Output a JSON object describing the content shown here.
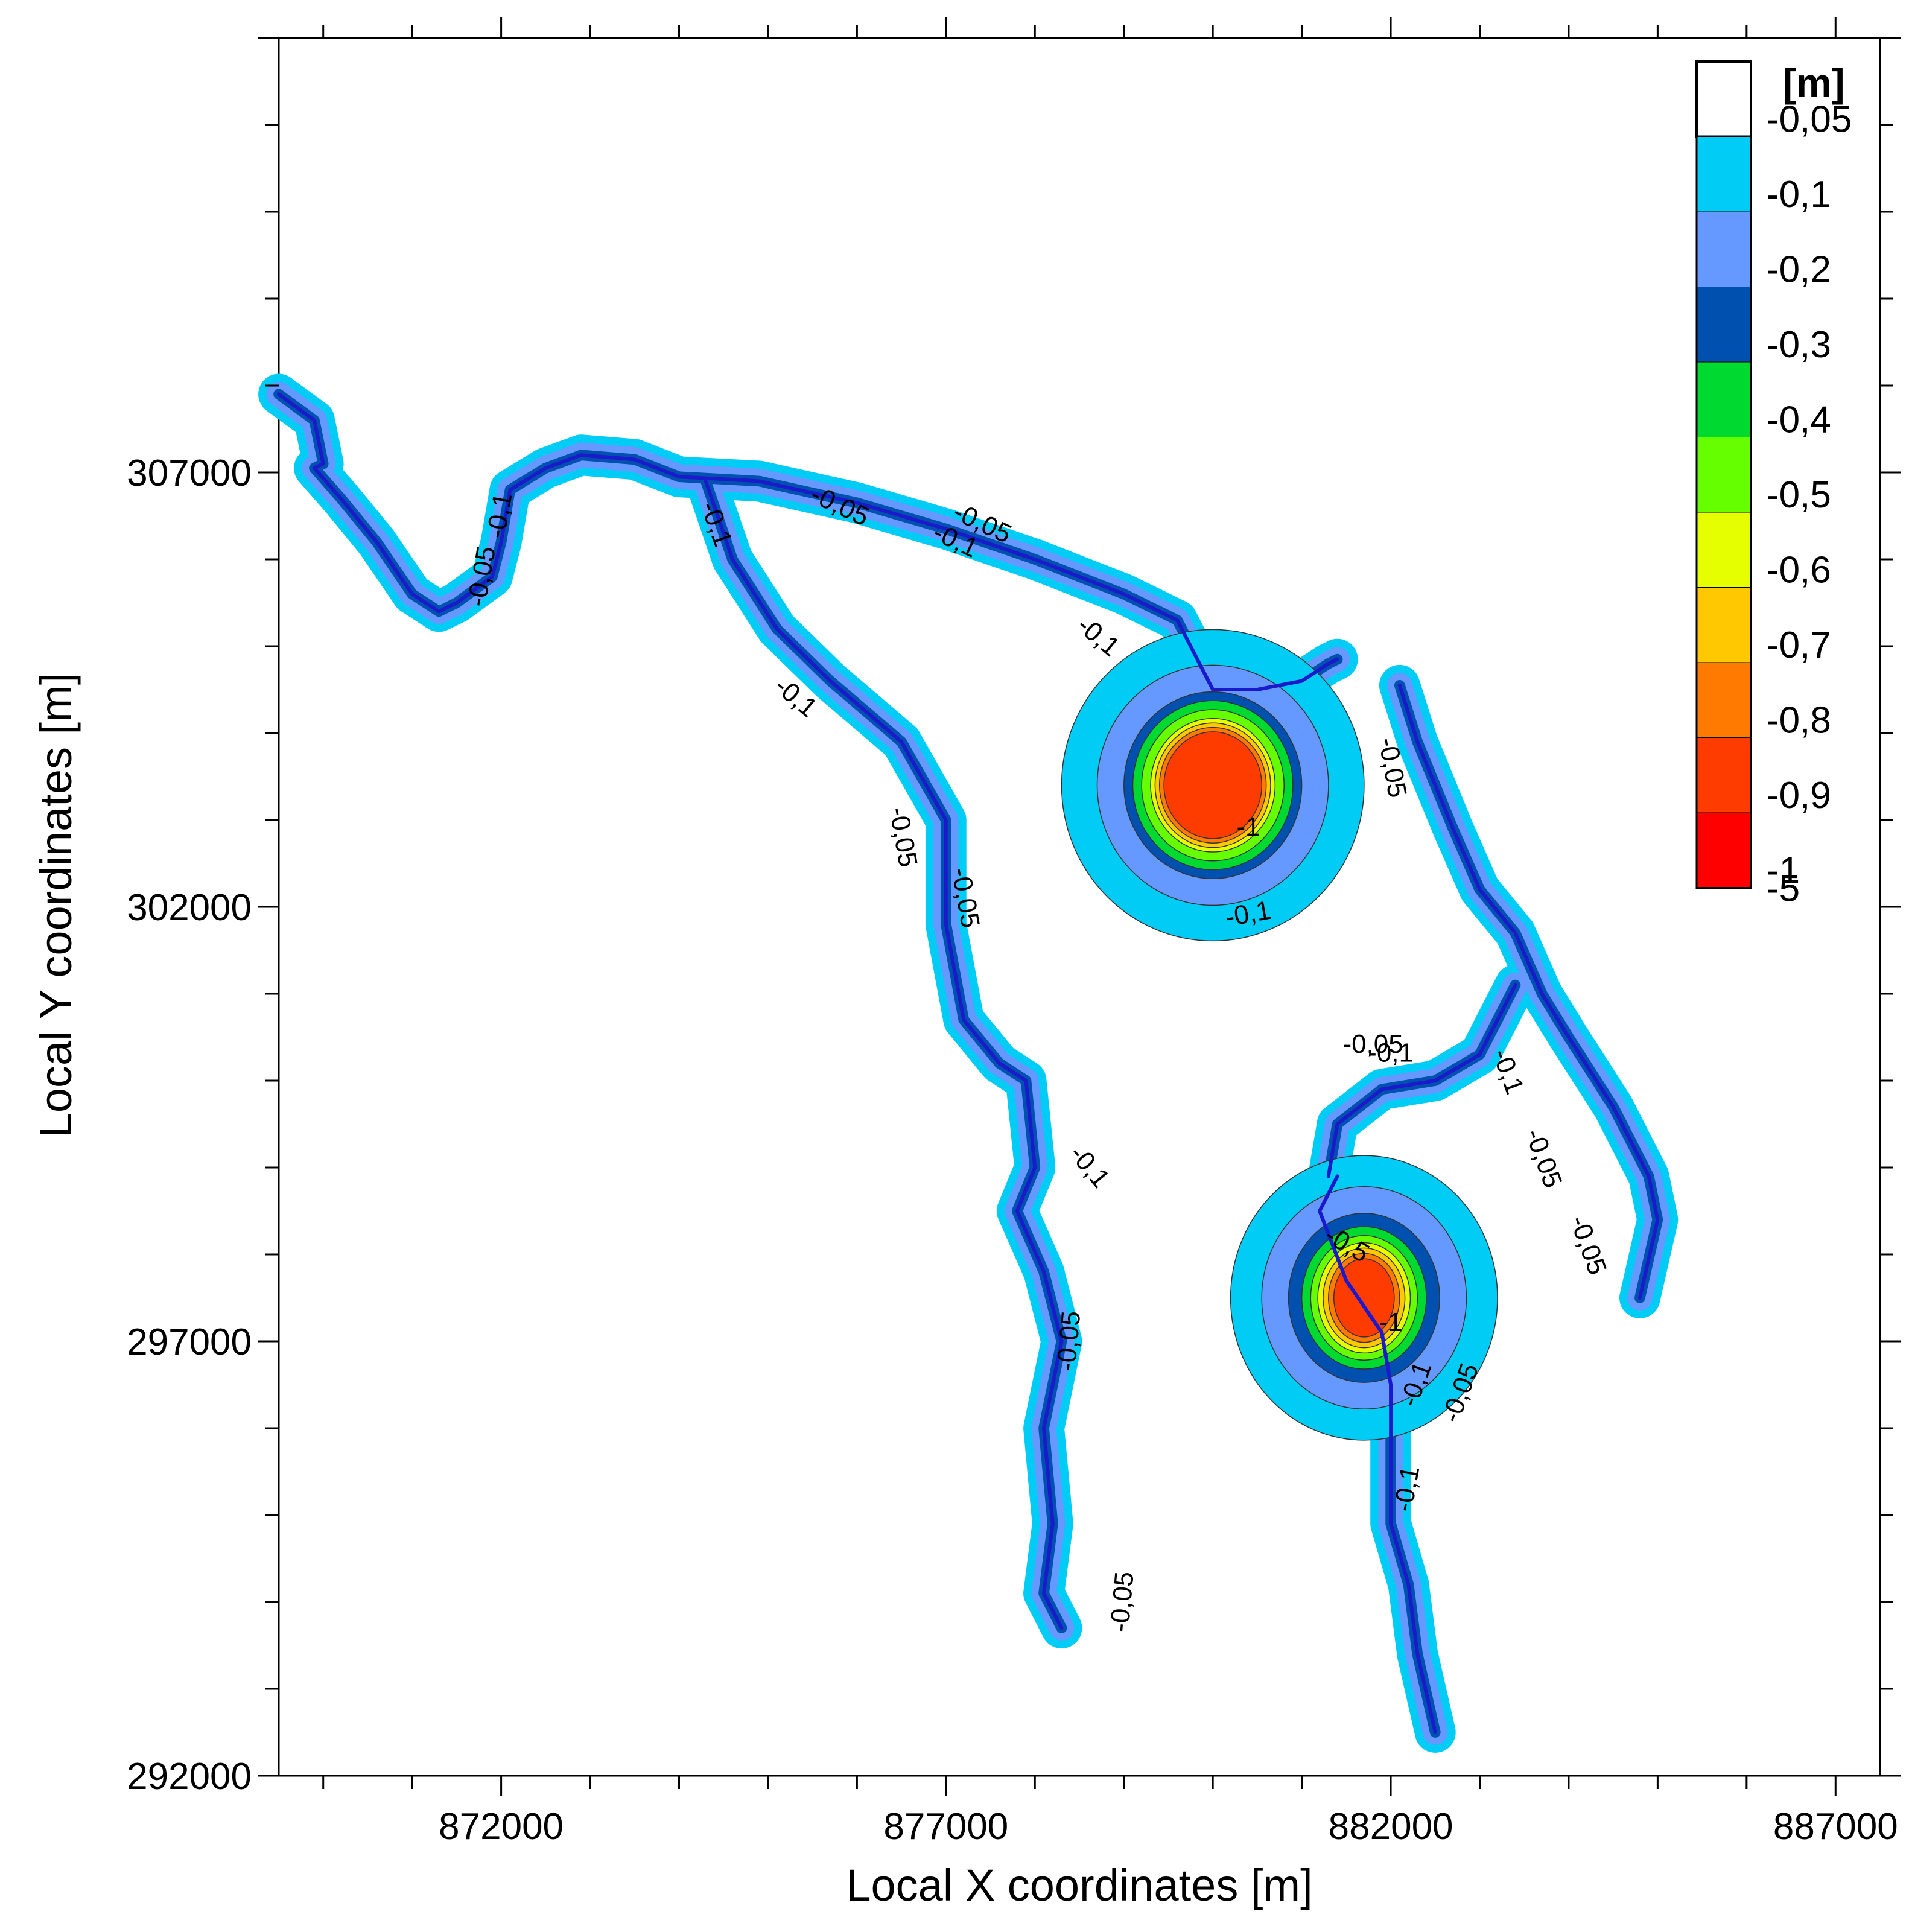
{
  "chart_data": {
    "type": "contour",
    "xlabel": "Local X coordinates [m]",
    "ylabel": "Local Y coordinates [m]",
    "xlim": [
      869500,
      887500
    ],
    "ylim": [
      292000,
      312000
    ],
    "x_ticks": [
      "872000",
      "877000",
      "882000",
      "887000"
    ],
    "y_ticks": [
      "292000",
      "297000",
      "302000",
      "307000"
    ],
    "grid": false,
    "colorbar": {
      "unit": "[m]",
      "position": "top-right",
      "levels": [
        "-0,05",
        "-0,1",
        "-0,2",
        "-0,3",
        "-0,4",
        "-0,5",
        "-0,6",
        "-0,7",
        "-0,8",
        "-0,9",
        "-1",
        "-5"
      ],
      "colors": [
        "#ffffff",
        "#00ccf5",
        "#6699ff",
        "#0050b0",
        "#00d930",
        "#66ff00",
        "#e6ff00",
        "#ffc800",
        "#ff7a00",
        "#ff3c00",
        "#ff0000",
        "#ff0000"
      ]
    },
    "rivers": {
      "color": "#1a1acc",
      "upper_left": {
        "x": [
          869500,
          869900,
          870000,
          869900,
          870200,
          870600,
          871000,
          871300,
          871500,
          871900,
          872000,
          872100,
          872500,
          872900,
          873500,
          874000,
          874900,
          876000,
          877000,
          878000,
          879000,
          879600,
          880000
        ],
        "y": [
          307900,
          307600,
          307100,
          307050,
          306700,
          306200,
          305600,
          305400,
          305500,
          305800,
          306200,
          306800,
          307050,
          307200,
          307150,
          306950,
          306900,
          306650,
          306350,
          306000,
          305600,
          305300,
          304500
        ]
      },
      "north_arm": {
        "x": [
          880000,
          880500,
          881000,
          881300,
          881400
        ],
        "y": [
          304500,
          304500,
          304600,
          304800,
          304850
        ]
      },
      "middle": {
        "x": [
          874300,
          874600,
          875100,
          875700,
          876500,
          877000,
          877000,
          877200,
          877600,
          877900,
          878000,
          877800,
          878100,
          878300,
          878100,
          878200,
          878100,
          878300
        ],
        "y": [
          306900,
          306000,
          305200,
          304600,
          303900,
          303000,
          301800,
          300700,
          300200,
          300000,
          299000,
          298500,
          297800,
          297000,
          296000,
          294900,
          294100,
          293700
        ]
      },
      "right": {
        "x": [
          882100,
          882300,
          882700,
          883000,
          883400,
          883700,
          884000,
          884500,
          884900,
          885000,
          884800
        ],
        "y": [
          304550,
          303900,
          302900,
          302200,
          301700,
          301000,
          300500,
          299700,
          298900,
          298400,
          297500
        ]
      },
      "right_trib": {
        "x": [
          883400,
          883000,
          882500,
          881900,
          881400,
          881300
        ],
        "y": [
          301100,
          300300,
          300000,
          299900,
          299500,
          298900
        ]
      },
      "lower": {
        "x": [
          881400,
          881200,
          881500,
          881900,
          882000,
          882000,
          882000,
          882200,
          882300,
          882500
        ],
        "y": [
          298900,
          298500,
          297700,
          297100,
          296500,
          295700,
          294900,
          294200,
          293400,
          292500
        ]
      }
    },
    "depressions": [
      {
        "center_x": 880000,
        "center_y": 303400,
        "rx": [
          1700,
          1300,
          1000,
          900,
          800,
          700,
          650,
          600,
          550
        ],
        "ry": [
          1750,
          1350,
          1050,
          950,
          850,
          750,
          700,
          650,
          600
        ]
      },
      {
        "center_x": 881700,
        "center_y": 297500,
        "rx": [
          1500,
          1150,
          850,
          700,
          600,
          520,
          460,
          400,
          340
        ],
        "ry": [
          1600,
          1250,
          950,
          800,
          700,
          620,
          560,
          500,
          440
        ]
      }
    ],
    "contour_labels": [
      {
        "text": "-0,1",
        "x": 872000,
        "y": 306500,
        "angle": -80
      },
      {
        "text": "-0,05",
        "x": 871800,
        "y": 305800,
        "angle": -80
      },
      {
        "text": "-0,1",
        "x": 874400,
        "y": 306400,
        "angle": 70
      },
      {
        "text": "-0,05",
        "x": 875800,
        "y": 306600,
        "angle": 25
      },
      {
        "text": "-0,05",
        "x": 877400,
        "y": 306400,
        "angle": 25
      },
      {
        "text": "-0,1",
        "x": 877100,
        "y": 306200,
        "angle": 25
      },
      {
        "text": "-0,1",
        "x": 878700,
        "y": 305100,
        "angle": 40
      },
      {
        "text": "-0,1",
        "x": 875300,
        "y": 304400,
        "angle": 40
      },
      {
        "text": "-0,05",
        "x": 876500,
        "y": 302800,
        "angle": 80
      },
      {
        "text": "-0,05",
        "x": 877200,
        "y": 302100,
        "angle": 80
      },
      {
        "text": "-0,05",
        "x": 882000,
        "y": 303600,
        "angle": 80
      },
      {
        "text": "-0,1",
        "x": 880400,
        "y": 301900,
        "angle": -10
      },
      {
        "text": "-1",
        "x": 880400,
        "y": 302900,
        "angle": 0
      },
      {
        "text": "-0,1",
        "x": 878600,
        "y": 299000,
        "angle": 50
      },
      {
        "text": "-0,05",
        "x": 878400,
        "y": 297000,
        "angle": -85
      },
      {
        "text": "-0,05",
        "x": 879000,
        "y": 294000,
        "angle": -85
      },
      {
        "text": "-0,1",
        "x": 883300,
        "y": 300100,
        "angle": 70
      },
      {
        "text": "-0,05",
        "x": 883700,
        "y": 299100,
        "angle": 70
      },
      {
        "text": "-0,05",
        "x": 884200,
        "y": 298100,
        "angle": 70
      },
      {
        "text": "-0,05",
        "x": 881800,
        "y": 300400,
        "angle": 0
      },
      {
        "text": "-0,1",
        "x": 882000,
        "y": 300300,
        "angle": 0
      },
      {
        "text": "-0,5",
        "x": 881500,
        "y": 298100,
        "angle": 30
      },
      {
        "text": "-1",
        "x": 882000,
        "y": 297200,
        "angle": 0
      },
      {
        "text": "-0,1",
        "x": 882300,
        "y": 296500,
        "angle": -70
      },
      {
        "text": "-0,05",
        "x": 882800,
        "y": 296400,
        "angle": -70
      },
      {
        "text": "-0,1",
        "x": 882200,
        "y": 295300,
        "angle": -80
      }
    ]
  }
}
